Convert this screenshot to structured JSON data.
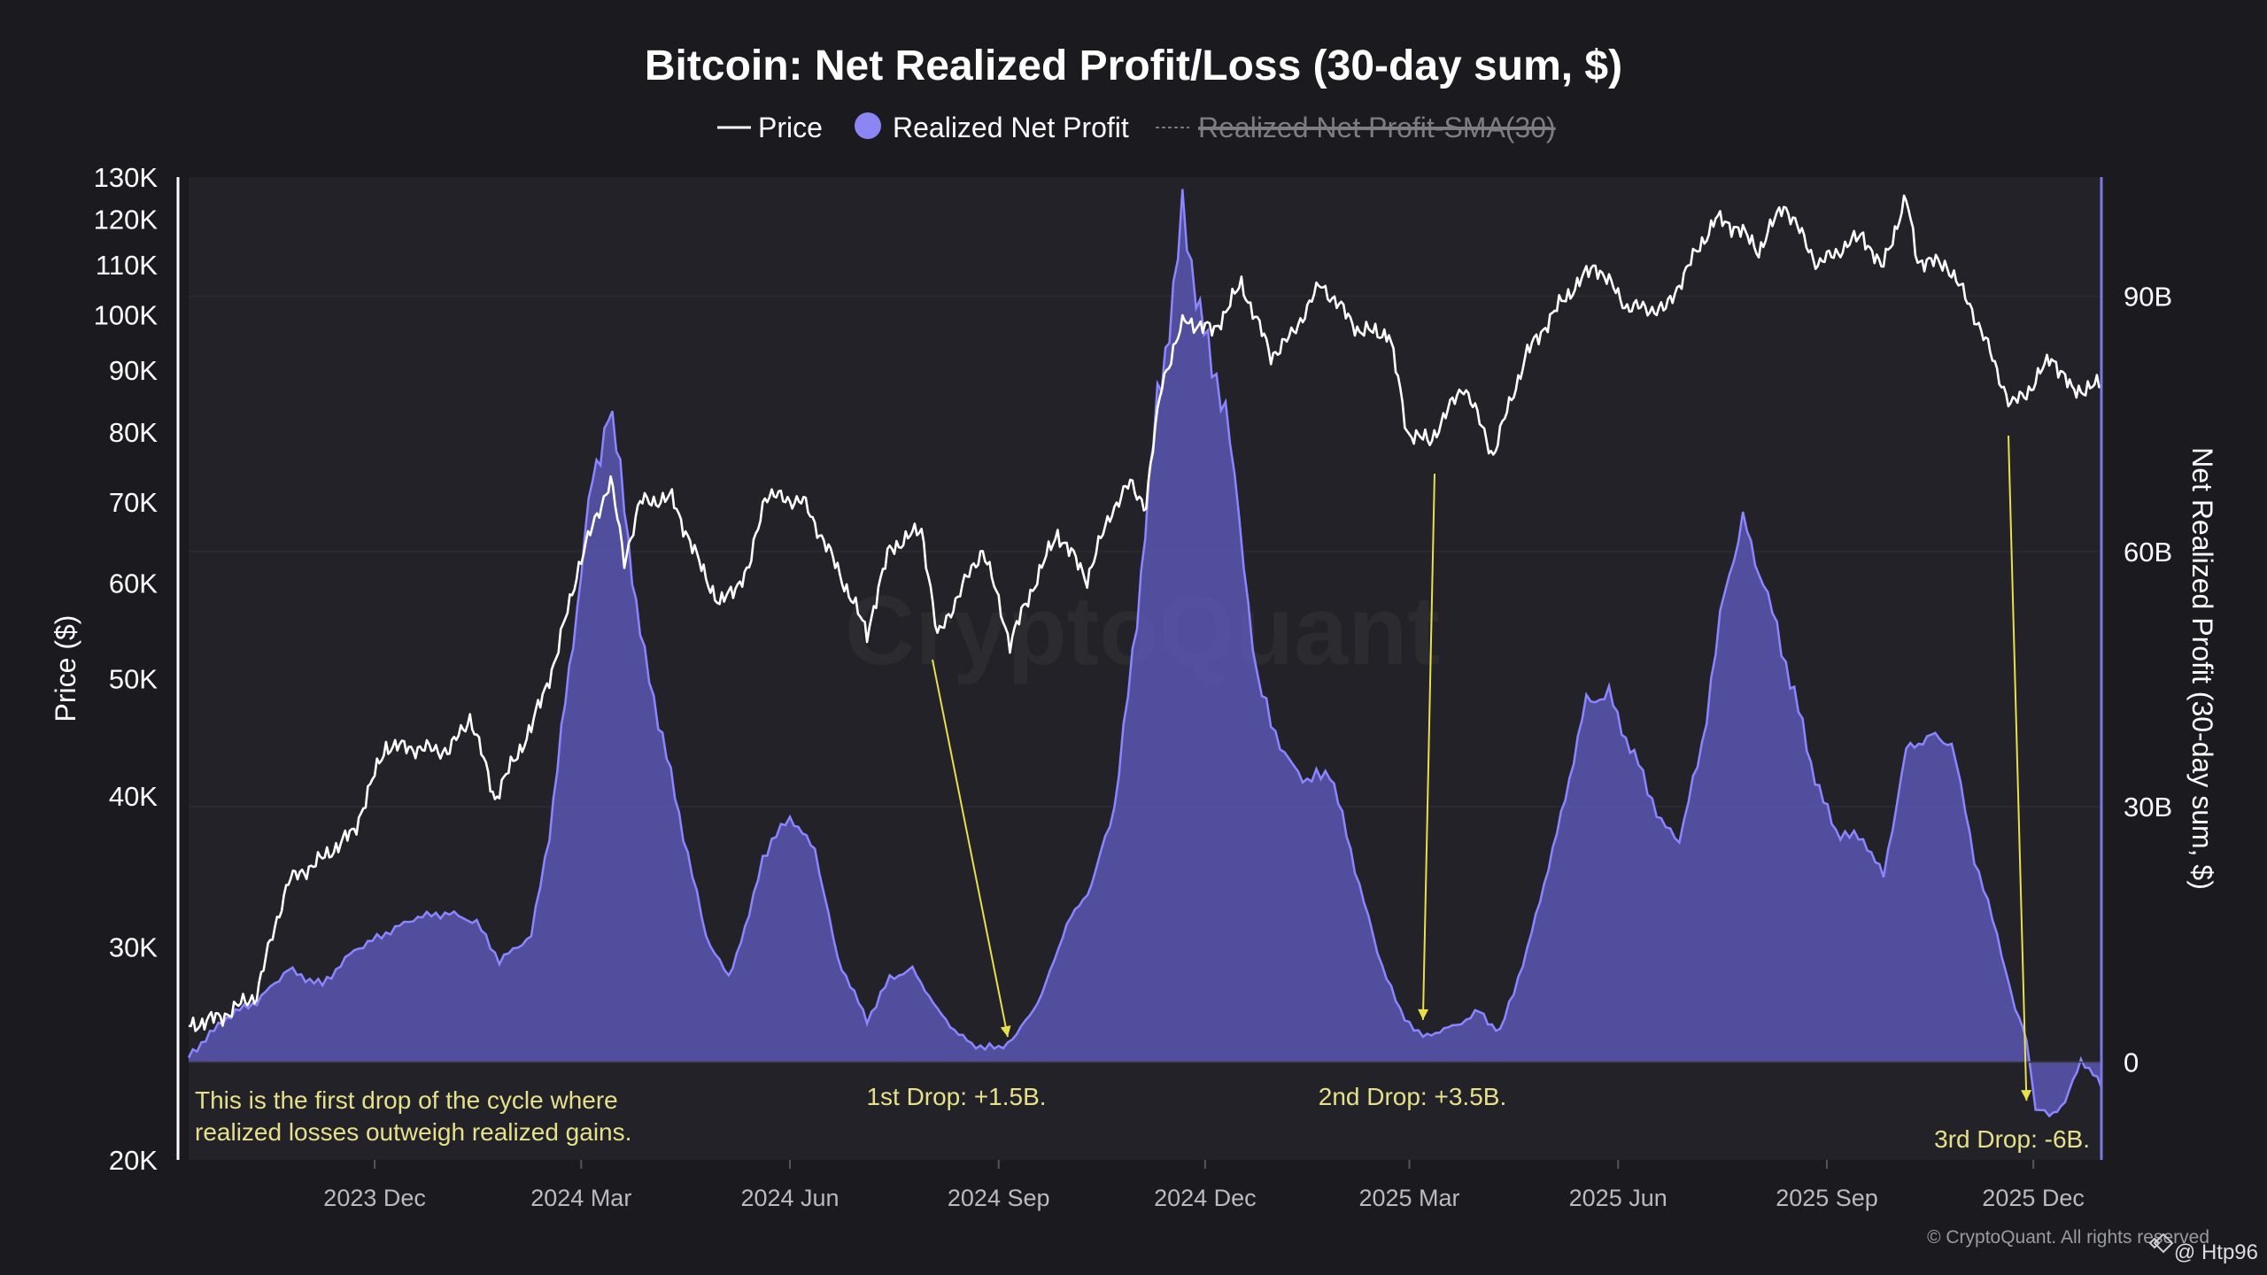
{
  "colors": {
    "background": "#1a1a1f",
    "plot_background": "#222228",
    "price_line": "#ffffff",
    "profit_fill": "#5b58b8",
    "profit_line": "#8b86ff",
    "legend_dot": "#8c86f5",
    "annotation": "#e8e04a",
    "annotation_text": "#e6e08a",
    "axis_text": "#ffffff",
    "muted_text": "#bbbbbb",
    "grid": "#2c2c33"
  },
  "chart_data": {
    "type": "line",
    "title": "Bitcoin: Net Realized Profit/Loss (30-day sum, $)",
    "legend": {
      "placement": "top-center",
      "items": [
        {
          "label": "Price",
          "marker": "line",
          "active": true
        },
        {
          "label": "Realized Net Profit",
          "marker": "dot",
          "active": true
        },
        {
          "label": "Realized Net Profit-SMA(30)",
          "marker": "dashed",
          "active": false
        }
      ]
    },
    "x_axis": {
      "type": "date",
      "range": [
        "2023-09-10",
        "2025-12-31"
      ],
      "ticks": [
        {
          "date": "2023-12-01",
          "label": "2023 Dec"
        },
        {
          "date": "2024-03-01",
          "label": "2024 Mar"
        },
        {
          "date": "2024-06-01",
          "label": "2024 Jun"
        },
        {
          "date": "2024-09-01",
          "label": "2024 Sep"
        },
        {
          "date": "2024-12-01",
          "label": "2024 Dec"
        },
        {
          "date": "2025-03-01",
          "label": "2025 Mar"
        },
        {
          "date": "2025-06-01",
          "label": "2025 Jun"
        },
        {
          "date": "2025-09-01",
          "label": "2025 Sep"
        },
        {
          "date": "2025-12-01",
          "label": "2025 Dec"
        }
      ]
    },
    "y_left": {
      "label": "Price ($)",
      "scale": "log",
      "range": [
        20000,
        130000
      ],
      "ticks": [
        {
          "value": 130000,
          "label": "130K"
        },
        {
          "value": 120000,
          "label": "120K"
        },
        {
          "value": 110000,
          "label": "110K"
        },
        {
          "value": 100000,
          "label": "100K"
        },
        {
          "value": 90000,
          "label": "90K"
        },
        {
          "value": 80000,
          "label": "80K"
        },
        {
          "value": 70000,
          "label": "70K"
        },
        {
          "value": 60000,
          "label": "60K"
        },
        {
          "value": 50000,
          "label": "50K"
        },
        {
          "value": 40000,
          "label": "40K"
        },
        {
          "value": 30000,
          "label": "30K"
        },
        {
          "value": 20000,
          "label": "20K"
        }
      ]
    },
    "y_right": {
      "label": "Net Realized Profit (30-day sum, $)",
      "scale": "linear",
      "range": [
        -11.5,
        104
      ],
      "unit": "B",
      "ticks": [
        {
          "value": 90,
          "label": "90B"
        },
        {
          "value": 60,
          "label": "60B"
        },
        {
          "value": 30,
          "label": "30B"
        },
        {
          "value": 0,
          "label": "0"
        }
      ]
    },
    "grid": true,
    "series": [
      {
        "name": "Price",
        "axis": "left",
        "points": [
          [
            "2023-09-10",
            25800
          ],
          [
            "2023-09-25",
            26300
          ],
          [
            "2023-10-10",
            27400
          ],
          [
            "2023-10-24",
            34000
          ],
          [
            "2023-11-08",
            35500
          ],
          [
            "2023-11-22",
            37400
          ],
          [
            "2023-12-06",
            44000
          ],
          [
            "2023-12-20",
            43800
          ],
          [
            "2024-01-03",
            43600
          ],
          [
            "2024-01-12",
            46500
          ],
          [
            "2024-01-23",
            39800
          ],
          [
            "2024-02-08",
            45500
          ],
          [
            "2024-02-19",
            52000
          ],
          [
            "2024-02-29",
            62000
          ],
          [
            "2024-03-14",
            73000
          ],
          [
            "2024-03-20",
            62500
          ],
          [
            "2024-03-27",
            70000
          ],
          [
            "2024-04-10",
            70500
          ],
          [
            "2024-04-20",
            63500
          ],
          [
            "2024-05-01",
            57500
          ],
          [
            "2024-05-14",
            61500
          ],
          [
            "2024-05-21",
            71000
          ],
          [
            "2024-06-07",
            70000
          ],
          [
            "2024-06-24",
            60500
          ],
          [
            "2024-07-05",
            54500
          ],
          [
            "2024-07-15",
            64000
          ],
          [
            "2024-07-29",
            66500
          ],
          [
            "2024-08-05",
            54000
          ],
          [
            "2024-08-25",
            64000
          ],
          [
            "2024-09-06",
            53500
          ],
          [
            "2024-09-27",
            66000
          ],
          [
            "2024-10-10",
            60500
          ],
          [
            "2024-10-21",
            69000
          ],
          [
            "2024-10-29",
            72500
          ],
          [
            "2024-11-05",
            69500
          ],
          [
            "2024-11-12",
            88000
          ],
          [
            "2024-11-22",
            99000
          ],
          [
            "2024-12-05",
            97000
          ],
          [
            "2024-12-17",
            106000
          ],
          [
            "2024-12-30",
            92500
          ],
          [
            "2025-01-08",
            96000
          ],
          [
            "2025-01-21",
            106000
          ],
          [
            "2025-02-07",
            97000
          ],
          [
            "2025-02-20",
            96500
          ],
          [
            "2025-02-28",
            80000
          ],
          [
            "2025-03-10",
            78500
          ],
          [
            "2025-03-25",
            87500
          ],
          [
            "2025-04-07",
            76500
          ],
          [
            "2025-04-22",
            93000
          ],
          [
            "2025-05-08",
            103000
          ],
          [
            "2025-05-22",
            110000
          ],
          [
            "2025-06-05",
            101500
          ],
          [
            "2025-06-22",
            101000
          ],
          [
            "2025-07-14",
            120000
          ],
          [
            "2025-07-24",
            118000
          ],
          [
            "2025-08-02",
            113000
          ],
          [
            "2025-08-13",
            123500
          ],
          [
            "2025-08-28",
            110000
          ],
          [
            "2025-09-17",
            116500
          ],
          [
            "2025-09-25",
            109000
          ],
          [
            "2025-10-06",
            124500
          ],
          [
            "2025-10-11",
            111000
          ],
          [
            "2025-10-24",
            110000
          ],
          [
            "2025-11-04",
            101000
          ],
          [
            "2025-11-21",
            84000
          ],
          [
            "2025-12-01",
            87500
          ],
          [
            "2025-12-09",
            92500
          ],
          [
            "2025-12-18",
            86500
          ],
          [
            "2025-12-31",
            87500
          ]
        ]
      },
      {
        "name": "Realized Net Profit",
        "axis": "right",
        "points": [
          [
            "2023-09-10",
            0.5
          ],
          [
            "2023-09-25",
            5
          ],
          [
            "2023-10-10",
            7
          ],
          [
            "2023-10-24",
            11
          ],
          [
            "2023-11-08",
            9
          ],
          [
            "2023-11-22",
            13
          ],
          [
            "2023-12-06",
            15
          ],
          [
            "2023-12-20",
            17
          ],
          [
            "2024-01-03",
            17.5
          ],
          [
            "2024-01-15",
            16.5
          ],
          [
            "2024-01-25",
            12
          ],
          [
            "2024-02-08",
            15
          ],
          [
            "2024-02-16",
            27
          ],
          [
            "2024-02-23",
            42
          ],
          [
            "2024-03-01",
            58
          ],
          [
            "2024-03-06",
            68
          ],
          [
            "2024-03-13",
            77
          ],
          [
            "2024-03-20",
            66
          ],
          [
            "2024-03-27",
            50
          ],
          [
            "2024-04-04",
            40
          ],
          [
            "2024-04-15",
            27
          ],
          [
            "2024-04-25",
            15
          ],
          [
            "2024-05-05",
            10
          ],
          [
            "2024-05-14",
            17
          ],
          [
            "2024-05-20",
            24
          ],
          [
            "2024-06-01",
            29
          ],
          [
            "2024-06-12",
            25
          ],
          [
            "2024-06-22",
            12
          ],
          [
            "2024-07-05",
            5
          ],
          [
            "2024-07-15",
            10
          ],
          [
            "2024-07-25",
            11
          ],
          [
            "2024-08-05",
            6
          ],
          [
            "2024-08-20",
            2
          ],
          [
            "2024-09-01",
            1.5
          ],
          [
            "2024-09-09",
            3
          ],
          [
            "2024-09-20",
            8
          ],
          [
            "2024-10-01",
            16
          ],
          [
            "2024-10-12",
            21
          ],
          [
            "2024-10-22",
            30
          ],
          [
            "2024-11-01",
            52
          ],
          [
            "2024-11-10",
            78
          ],
          [
            "2024-11-17",
            90
          ],
          [
            "2024-11-21",
            99
          ],
          [
            "2024-11-27",
            90
          ],
          [
            "2024-12-04",
            82
          ],
          [
            "2024-12-10",
            78
          ],
          [
            "2024-12-16",
            64
          ],
          [
            "2024-12-24",
            45
          ],
          [
            "2025-01-05",
            36
          ],
          [
            "2025-01-15",
            33
          ],
          [
            "2025-01-25",
            34
          ],
          [
            "2025-02-05",
            23
          ],
          [
            "2025-02-15",
            13
          ],
          [
            "2025-02-25",
            6
          ],
          [
            "2025-03-07",
            3
          ],
          [
            "2025-03-20",
            4
          ],
          [
            "2025-04-01",
            6
          ],
          [
            "2025-04-10",
            3.5
          ],
          [
            "2025-04-22",
            13
          ],
          [
            "2025-05-05",
            27
          ],
          [
            "2025-05-18",
            42
          ],
          [
            "2025-05-28",
            43
          ],
          [
            "2025-06-10",
            35
          ],
          [
            "2025-06-20",
            28
          ],
          [
            "2025-06-28",
            26
          ],
          [
            "2025-07-08",
            37
          ],
          [
            "2025-07-18",
            55
          ],
          [
            "2025-07-26",
            63
          ],
          [
            "2025-08-04",
            57
          ],
          [
            "2025-08-14",
            47
          ],
          [
            "2025-08-25",
            35
          ],
          [
            "2025-09-05",
            27
          ],
          [
            "2025-09-17",
            26
          ],
          [
            "2025-09-26",
            22
          ],
          [
            "2025-10-06",
            37
          ],
          [
            "2025-10-17",
            38
          ],
          [
            "2025-10-26",
            38
          ],
          [
            "2025-11-05",
            24
          ],
          [
            "2025-11-15",
            15
          ],
          [
            "2025-11-23",
            6
          ],
          [
            "2025-11-28",
            3
          ],
          [
            "2025-12-02",
            -5.5
          ],
          [
            "2025-12-08",
            -6
          ],
          [
            "2025-12-15",
            -5
          ],
          [
            "2025-12-22",
            0.5
          ],
          [
            "2025-12-31",
            -3
          ]
        ]
      }
    ],
    "annotations": [
      {
        "label": "1st Drop: +1.5B.",
        "date": "2024-09-05",
        "value": 1.5
      },
      {
        "label": "2nd Drop: +3.5B.",
        "date": "2025-03-07",
        "value": 3.5
      },
      {
        "label": "3rd Drop: -6B.",
        "date": "2025-11-28",
        "value": -6
      }
    ],
    "notes": [
      "This is the first drop of the cycle where",
      "realized losses outweigh realized gains."
    ],
    "watermark": "CryptoQuant",
    "credits": [
      "© CryptoQuant. All rights reserved",
      "@ Htp96"
    ]
  }
}
